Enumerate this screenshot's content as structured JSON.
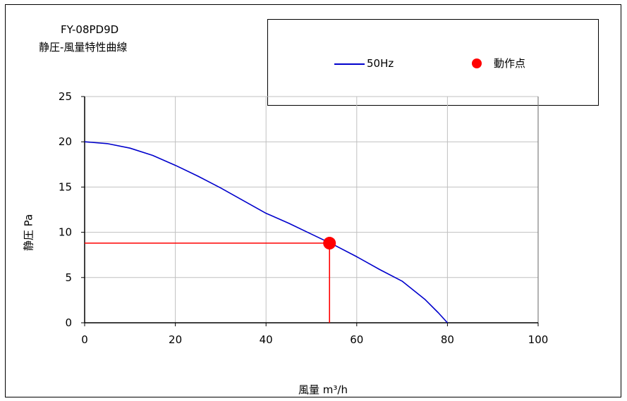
{
  "chart_data": {
    "type": "line",
    "title": "FY-08PD9D",
    "subtitle": "静圧-風量特性曲線",
    "xlabel": "風量 m³/h",
    "ylabel": "静圧 Pa",
    "xlim": [
      0,
      100
    ],
    "ylim": [
      0,
      25
    ],
    "xticks": [
      0,
      20,
      40,
      60,
      80,
      100
    ],
    "yticks": [
      0,
      5,
      10,
      15,
      20,
      25
    ],
    "grid": true,
    "legend_position": "top-right",
    "series": [
      {
        "name": "50Hz",
        "color": "#0000cc",
        "x": [
          0,
          5,
          10,
          15,
          20,
          25,
          30,
          35,
          40,
          45,
          50,
          55,
          60,
          65,
          70,
          75,
          78,
          80
        ],
        "y": [
          20,
          19.8,
          19.3,
          18.5,
          17.4,
          16.2,
          14.9,
          13.5,
          12.1,
          11.0,
          9.8,
          8.6,
          7.3,
          5.9,
          4.6,
          2.6,
          1.1,
          0
        ]
      }
    ],
    "operating_point": {
      "name": "動作点",
      "color": "#ff0000",
      "x": 54,
      "y": 8.8
    }
  }
}
